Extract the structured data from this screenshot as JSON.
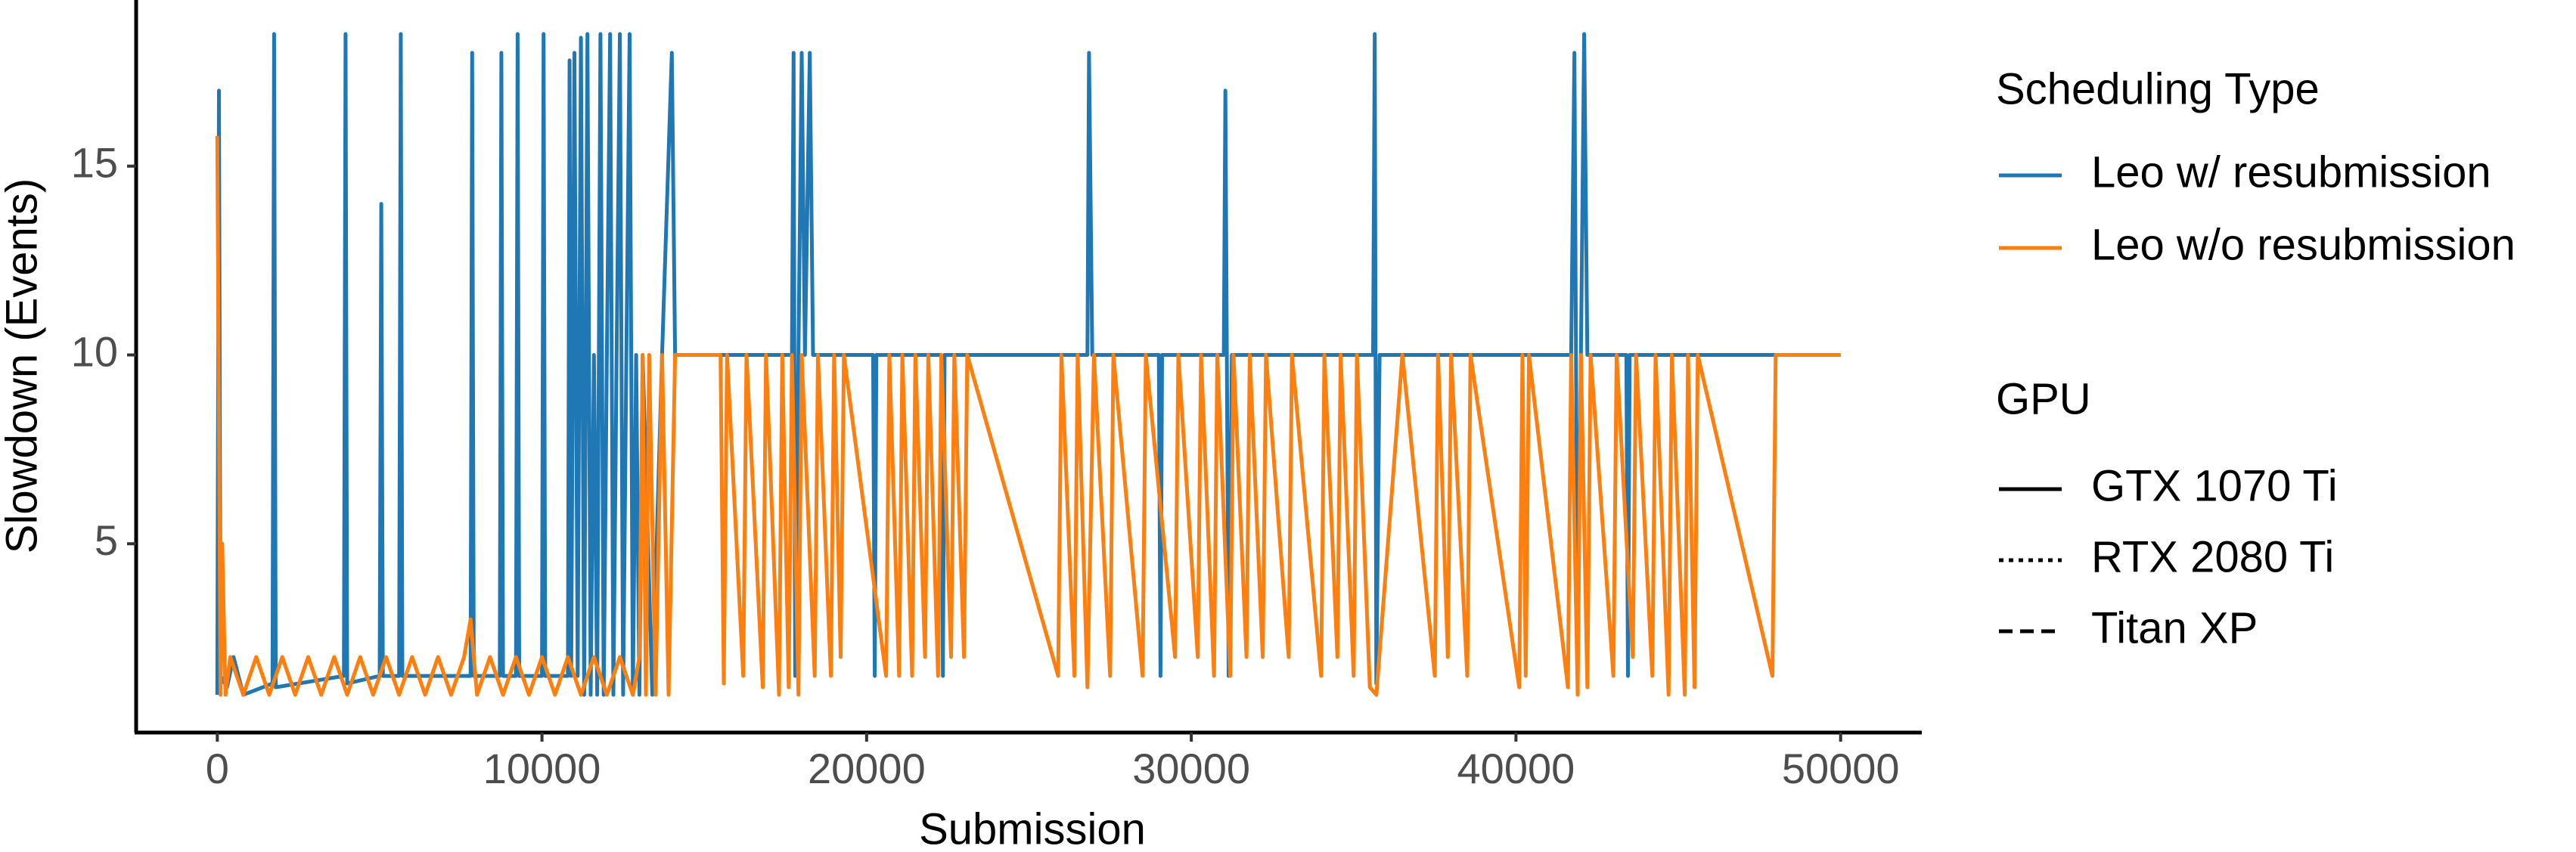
{
  "chart_data": {
    "type": "line",
    "x_label": "Submission",
    "y_label": "Slowdown (Events)",
    "legend_title": "Scheduling Type",
    "xlim": [
      -2500,
      52500
    ],
    "xticks": [
      0,
      10000,
      20000,
      30000,
      40000,
      50000
    ],
    "ylim": [
      0,
      19.4
    ],
    "yticks": [
      5,
      10,
      15
    ],
    "grid": false,
    "series": [
      {
        "name": "Leo w/ resubmission",
        "color": "#1f77b4",
        "x": [
          0,
          50,
          100,
          300,
          500,
          800,
          1700,
          1750,
          1800,
          3900,
          3950,
          4000,
          5000,
          5050,
          5100,
          5600,
          5650,
          5700,
          7800,
          7850,
          7900,
          8700,
          8750,
          8800,
          9200,
          9250,
          9300,
          10000,
          10050,
          10100,
          10800,
          10850,
          10900,
          11000,
          11100,
          11200,
          11300,
          11400,
          11500,
          11600,
          11700,
          11800,
          11900,
          12000,
          12100,
          12200,
          12300,
          12400,
          12500,
          12600,
          12700,
          12800,
          12900,
          13000,
          13100,
          13400,
          13700,
          14000,
          14100,
          17700,
          17750,
          17800,
          17900,
          18000,
          18100,
          18250,
          18350,
          20200,
          20250,
          20300,
          22300,
          22350,
          22400,
          26800,
          26850,
          26950,
          29000,
          29050,
          29100,
          31000,
          31050,
          31150,
          31250,
          35600,
          35650,
          35700,
          35800,
          41700,
          41800,
          41900,
          42100,
          42200,
          43400,
          43450,
          43500,
          50000
        ],
        "values": [
          1,
          17,
          1.5,
          1.2,
          2,
          1,
          1.3,
          18.5,
          1.2,
          1.5,
          18.5,
          1.3,
          1.5,
          14,
          1.5,
          1.5,
          18.5,
          1.5,
          1.5,
          18,
          1.5,
          1.5,
          18,
          1.5,
          1.5,
          18.5,
          1.5,
          1.5,
          18.5,
          1.5,
          1.5,
          17.8,
          1.5,
          18,
          1.5,
          18.4,
          1,
          18.5,
          1,
          10,
          1,
          18.5,
          1,
          10,
          18.5,
          1,
          10,
          18.5,
          1,
          10,
          18.5,
          1,
          10,
          1,
          10,
          1,
          10,
          18,
          10,
          10,
          18,
          1.5,
          10,
          18,
          10,
          18,
          10,
          10,
          1.5,
          10,
          10,
          1.5,
          10,
          10,
          18,
          10,
          10,
          1.5,
          10,
          10,
          17,
          1.5,
          10,
          10,
          18.5,
          1.3,
          10,
          10,
          18,
          1.5,
          18.5,
          10,
          10,
          1.5,
          10,
          10
        ]
      },
      {
        "name": "Leo w/o resubmission",
        "color": "#ff7f0e",
        "x": [
          0,
          100,
          150,
          250,
          400,
          800,
          1200,
          1600,
          2000,
          2400,
          2800,
          3200,
          3600,
          4000,
          4400,
          4800,
          5200,
          5600,
          6000,
          6400,
          6800,
          7200,
          7600,
          7800,
          8000,
          8400,
          8800,
          9200,
          9600,
          10000,
          10400,
          10800,
          11200,
          11600,
          12000,
          12400,
          12800,
          13000,
          13100,
          13200,
          13300,
          13500,
          13700,
          13900,
          14100,
          15500,
          15600,
          15700,
          16200,
          16300,
          16800,
          16900,
          17300,
          17400,
          17600,
          17700,
          17900,
          18000,
          18400,
          18500,
          18900,
          19000,
          19200,
          19300,
          20600,
          20700,
          21000,
          21100,
          21400,
          21500,
          21800,
          21900,
          22200,
          22300,
          22600,
          22700,
          23000,
          23100,
          25900,
          26000,
          26400,
          26500,
          26800,
          27000,
          27500,
          27600,
          28500,
          28600,
          29500,
          29600,
          30200,
          30300,
          30700,
          30800,
          31200,
          31300,
          31700,
          31800,
          32200,
          32300,
          33000,
          33100,
          34000,
          34100,
          34500,
          34600,
          35000,
          35100,
          35500,
          35700,
          36500,
          37500,
          37600,
          37900,
          38000,
          38500,
          38600,
          40100,
          40200,
          40300,
          40400,
          41600,
          41700,
          41900,
          42000,
          42200,
          42300,
          43000,
          43100,
          43600,
          43700,
          44200,
          44300,
          44700,
          44800,
          45200,
          45300,
          45500,
          45600,
          47900,
          48000,
          50000
        ],
        "values": [
          15.8,
          1,
          5,
          1,
          2,
          1,
          2,
          1,
          2,
          1,
          2,
          1,
          2,
          1,
          2,
          1,
          2,
          1,
          2,
          1,
          2,
          1,
          2,
          3,
          1,
          2,
          1,
          2,
          1,
          2,
          1,
          2,
          1,
          2,
          1,
          2,
          1,
          2,
          10,
          1,
          10,
          1,
          10,
          1,
          10,
          10,
          1.3,
          10,
          1.5,
          10,
          1.2,
          10,
          1,
          10,
          1.2,
          10,
          1,
          10,
          1.5,
          10,
          1.5,
          10,
          2,
          10,
          1.5,
          10,
          1.5,
          10,
          1.5,
          10,
          2,
          10,
          1.5,
          10,
          2,
          10,
          2,
          10,
          1.5,
          10,
          1.5,
          10,
          1.2,
          10,
          1.5,
          10,
          1.5,
          10,
          2,
          10,
          2,
          10,
          1.5,
          10,
          1.5,
          10,
          2,
          10,
          2,
          10,
          2,
          10,
          1.5,
          10,
          2,
          10,
          1.5,
          10,
          1.2,
          1,
          10,
          1.5,
          10,
          2,
          10,
          1.5,
          10,
          1.2,
          10,
          1.5,
          10,
          1.2,
          10,
          1,
          10,
          1.2,
          10,
          1.5,
          10,
          2,
          10,
          1.5,
          10,
          1,
          10,
          1,
          10,
          1.2,
          10,
          1.5,
          10,
          10
        ]
      }
    ],
    "linetype_legend": {
      "title": "GPU",
      "entries": [
        {
          "name": "GTX 1070 Ti",
          "linetype": "solid"
        },
        {
          "name": "RTX 2080 Ti",
          "linetype": "dotted"
        },
        {
          "name": "Titan XP",
          "linetype": "dashed"
        }
      ]
    }
  }
}
